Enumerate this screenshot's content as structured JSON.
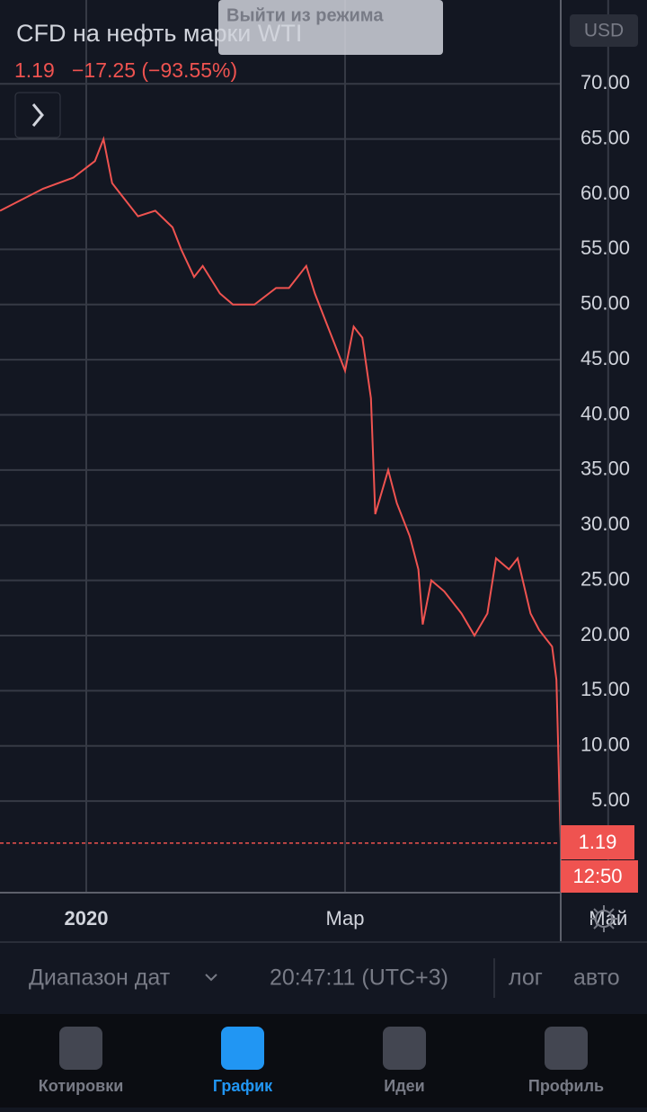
{
  "header": {
    "title": "CFD на нефть марки WTI",
    "change": "−17.25 (−93.55%)",
    "exit_button": "Выйти из режима",
    "currency": "USD",
    "time_label": "12:50"
  },
  "chart_data": {
    "type": "line",
    "series": [
      {
        "name": "CFD на нефть марки WTI",
        "color": "#ef5350",
        "x": [
          -20,
          -10,
          -3,
          2,
          4,
          6,
          12,
          16,
          20,
          22,
          25,
          27,
          31,
          34,
          39,
          44,
          47,
          51,
          53,
          57,
          60,
          62,
          64,
          66,
          67,
          70,
          72,
          75,
          77,
          78,
          80,
          83,
          87,
          90,
          93,
          95,
          98,
          100,
          103,
          105,
          108,
          109,
          110
        ],
        "values": [
          58.5,
          60.5,
          61.5,
          63,
          65,
          61,
          58,
          58.5,
          57,
          55,
          52.5,
          53.5,
          51,
          50,
          50,
          51.5,
          51.5,
          53.5,
          51,
          47,
          44,
          48,
          47,
          41.5,
          31,
          35,
          32,
          29,
          26,
          21,
          25,
          24,
          22,
          20,
          22,
          27,
          26,
          27,
          22,
          20.5,
          19,
          16,
          1.19
        ]
      }
    ],
    "xlim": [
      -20,
      130
    ],
    "xticks": [
      {
        "value": 0,
        "label": "2020"
      },
      {
        "value": 60,
        "label": "Мар"
      },
      {
        "value": 121,
        "label": "Май"
      }
    ],
    "ylim": [
      -3.3,
      77.6
    ],
    "yticks": [
      {
        "value": 5,
        "label": "5.00"
      },
      {
        "value": 10,
        "label": "10.00"
      },
      {
        "value": 15,
        "label": "15.00"
      },
      {
        "value": 20,
        "label": "20.00"
      },
      {
        "value": 25,
        "label": "25.00"
      },
      {
        "value": 30,
        "label": "30.00"
      },
      {
        "value": 35,
        "label": "35.00"
      },
      {
        "value": 40,
        "label": "40.00"
      },
      {
        "value": 45,
        "label": "45.00"
      },
      {
        "value": 50,
        "label": "50.00"
      },
      {
        "value": 55,
        "label": "55.00"
      },
      {
        "value": 60,
        "label": "60.00"
      },
      {
        "value": 65,
        "label": "65.00"
      },
      {
        "value": 70,
        "label": "70.00"
      }
    ],
    "grid": true
  },
  "toolbar": {
    "range": "Диапазон дат",
    "clock": "20:47:11 (UTC+3)",
    "log": "лог",
    "auto": "авто"
  },
  "tabs": [
    "Котировки",
    "График",
    "Идеи",
    "Профиль"
  ]
}
